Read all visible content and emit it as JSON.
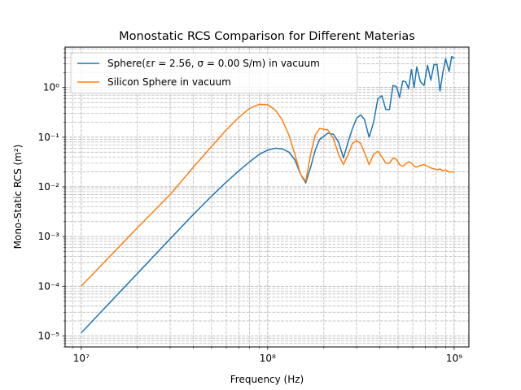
{
  "chart_data": {
    "type": "line",
    "title": "Monostatic RCS Comparison for Different Materias",
    "xlabel": "Frequency (Hz)",
    "ylabel": "Mono-Static RCS (m²)",
    "x_scale": "log",
    "y_scale": "log",
    "xlim": [
      8200000.0,
      1200000000.0
    ],
    "ylim": [
      6e-06,
      6.5
    ],
    "grid": "on (major and minor, dashed)",
    "legend_position": "top-left",
    "x_ticks": [
      {
        "value": 10000000.0,
        "label": "10⁷"
      },
      {
        "value": 100000000.0,
        "label": "10⁸"
      },
      {
        "value": 1000000000.0,
        "label": "10⁹"
      }
    ],
    "y_ticks": [
      {
        "value": 1e-05,
        "label": "10⁻⁵"
      },
      {
        "value": 0.0001,
        "label": "10⁻⁴"
      },
      {
        "value": 0.001,
        "label": "10⁻³"
      },
      {
        "value": 0.01,
        "label": "10⁻²"
      },
      {
        "value": 0.1,
        "label": "10⁻¹"
      },
      {
        "value": 1,
        "label": "10⁰"
      }
    ],
    "series": [
      {
        "name": "Sphere(εr = 2.56, σ = 0.00 S/m) in vacuum",
        "color": "#1f77b4",
        "x": [
          10000000.0,
          20000000.0,
          30000000.0,
          40000000.0,
          50000000.0,
          60000000.0,
          70000000.0,
          80000000.0,
          90000000.0,
          100000000.0,
          110000000.0,
          120000000.0,
          130000000.0,
          140000000.0,
          150000000.0,
          160000000.0,
          170000000.0,
          180000000.0,
          190000000.0,
          210000000.0,
          225000000.0,
          240000000.0,
          255000000.0,
          270000000.0,
          285000000.0,
          300000000.0,
          315000000.0,
          330000000.0,
          350000000.0,
          370000000.0,
          390000000.0,
          410000000.0,
          430000000.0,
          450000000.0,
          470000000.0,
          490000000.0,
          510000000.0,
          530000000.0,
          550000000.0,
          570000000.0,
          590000000.0,
          610000000.0,
          630000000.0,
          660000000.0,
          690000000.0,
          720000000.0,
          750000000.0,
          780000000.0,
          810000000.0,
          840000000.0,
          870000000.0,
          900000000.0,
          940000000.0,
          970000000.0,
          1000000000.0
        ],
        "y": [
          1.15e-05,
          0.00018,
          0.0009,
          0.0028,
          0.0065,
          0.0125,
          0.021,
          0.032,
          0.045,
          0.055,
          0.06,
          0.058,
          0.05,
          0.035,
          0.018,
          0.012,
          0.025,
          0.055,
          0.09,
          0.12,
          0.115,
          0.08,
          0.038,
          0.08,
          0.15,
          0.24,
          0.28,
          0.23,
          0.1,
          0.2,
          0.6,
          0.68,
          0.36,
          0.36,
          1.1,
          1.05,
          0.63,
          1.35,
          1.3,
          0.95,
          2.3,
          1.0,
          2.6,
          1.3,
          1.1,
          2.8,
          1.4,
          2.9,
          2.9,
          0.85,
          2.0,
          3.8,
          2.1,
          4.2,
          3.8
        ]
      },
      {
        "name": "Silicon Sphere in vacuum",
        "color": "#ff7f0e",
        "x": [
          10000000.0,
          20000000.0,
          30000000.0,
          40000000.0,
          50000000.0,
          60000000.0,
          70000000.0,
          80000000.0,
          90000000.0,
          100000000.0,
          110000000.0,
          120000000.0,
          130000000.0,
          140000000.0,
          150000000.0,
          160000000.0,
          170000000.0,
          180000000.0,
          190000000.0,
          210000000.0,
          225000000.0,
          240000000.0,
          255000000.0,
          270000000.0,
          285000000.0,
          300000000.0,
          315000000.0,
          330000000.0,
          350000000.0,
          370000000.0,
          390000000.0,
          410000000.0,
          430000000.0,
          450000000.0,
          470000000.0,
          490000000.0,
          510000000.0,
          530000000.0,
          550000000.0,
          570000000.0,
          590000000.0,
          610000000.0,
          630000000.0,
          660000000.0,
          690000000.0,
          720000000.0,
          750000000.0,
          780000000.0,
          810000000.0,
          840000000.0,
          870000000.0,
          900000000.0,
          940000000.0,
          970000000.0,
          1000000000.0
        ],
        "y": [
          0.0001,
          0.0015,
          0.007,
          0.025,
          0.065,
          0.14,
          0.25,
          0.38,
          0.46,
          0.45,
          0.35,
          0.22,
          0.11,
          0.045,
          0.018,
          0.013,
          0.045,
          0.11,
          0.15,
          0.14,
          0.095,
          0.045,
          0.028,
          0.045,
          0.075,
          0.085,
          0.075,
          0.05,
          0.028,
          0.045,
          0.052,
          0.04,
          0.03,
          0.03,
          0.038,
          0.036,
          0.028,
          0.026,
          0.029,
          0.032,
          0.03,
          0.026,
          0.025,
          0.027,
          0.028,
          0.026,
          0.024,
          0.023,
          0.022,
          0.023,
          0.021,
          0.022,
          0.02,
          0.02,
          0.02
        ]
      }
    ]
  }
}
